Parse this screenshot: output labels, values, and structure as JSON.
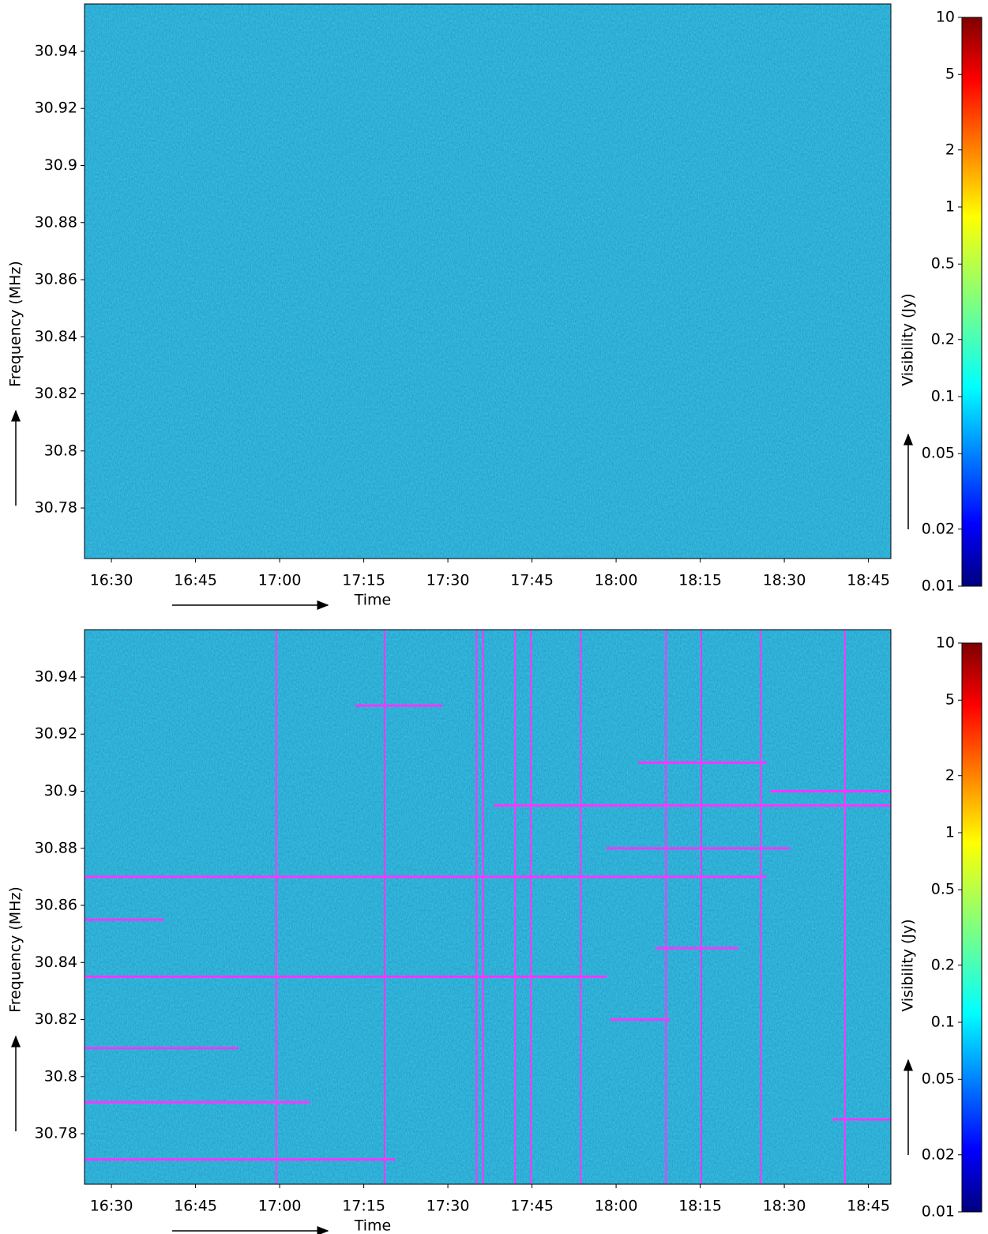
{
  "chart_data": [
    {
      "type": "heatmap",
      "x_label": "Time",
      "y_label": "Frequency (MHz)",
      "colorbar_label": "Visibility (Jy)",
      "xlim": [
        985.2,
        1129
      ],
      "xticks": [
        {
          "value": 990,
          "label": "16:30"
        },
        {
          "value": 1005,
          "label": "16:45"
        },
        {
          "value": 1020,
          "label": "17:00"
        },
        {
          "value": 1035,
          "label": "17:15"
        },
        {
          "value": 1050,
          "label": "17:30"
        },
        {
          "value": 1065,
          "label": "17:45"
        },
        {
          "value": 1080,
          "label": "18:00"
        },
        {
          "value": 1095,
          "label": "18:15"
        },
        {
          "value": 1110,
          "label": "18:30"
        },
        {
          "value": 1125,
          "label": "18:45"
        }
      ],
      "ylim": [
        30.7623,
        30.9566
      ],
      "yticks": [
        30.78,
        30.8,
        30.82,
        30.84,
        30.86,
        30.88,
        30.9,
        30.92,
        30.94
      ],
      "clim": [
        0.01,
        10
      ],
      "color_scale": "log",
      "colormap": [
        "#00007f",
        "#0000ff",
        "#00ffff",
        "#ffff00",
        "#ff0000",
        "#7f0000"
      ],
      "cticks": [
        0.01,
        0.02,
        0.05,
        0.1,
        0.2,
        0.5,
        1,
        2,
        5,
        10
      ],
      "background": "#1b8ec2"
    },
    {
      "type": "heatmap",
      "x_label": "Time",
      "y_label": "Frequency (MHz)",
      "colorbar_label": "Visibility (Jy)",
      "xlim": [
        985.2,
        1129
      ],
      "xticks": [
        {
          "value": 990,
          "label": "16:30"
        },
        {
          "value": 1005,
          "label": "16:45"
        },
        {
          "value": 1020,
          "label": "17:00"
        },
        {
          "value": 1035,
          "label": "17:15"
        },
        {
          "value": 1050,
          "label": "17:30"
        },
        {
          "value": 1065,
          "label": "17:45"
        },
        {
          "value": 1080,
          "label": "18:00"
        },
        {
          "value": 1095,
          "label": "18:15"
        },
        {
          "value": 1110,
          "label": "18:30"
        },
        {
          "value": 1125,
          "label": "18:45"
        }
      ],
      "ylim": [
        30.7623,
        30.9566
      ],
      "yticks": [
        30.78,
        30.8,
        30.82,
        30.84,
        30.86,
        30.88,
        30.9,
        30.92,
        30.94
      ],
      "clim": [
        0.01,
        10
      ],
      "color_scale": "log",
      "colormap": [
        "#00007f",
        "#0000ff",
        "#00ffff",
        "#ffff00",
        "#ff0000",
        "#7f0000"
      ],
      "cticks": [
        0.01,
        0.02,
        0.05,
        0.1,
        0.2,
        0.5,
        1,
        2,
        5,
        10
      ],
      "background": "#1b8ec2",
      "flagged": {
        "color": "#ff33ff",
        "horizontal": [
          [
            30.87,
            985.2,
            1106.8
          ],
          [
            30.835,
            985.2,
            1078.3
          ],
          [
            30.771,
            985.2,
            1040.6
          ],
          [
            30.791,
            985.2,
            1025.4
          ],
          [
            30.81,
            985.2,
            1012.7
          ],
          [
            30.855,
            985.2,
            999.4
          ],
          [
            30.895,
            1058.2,
            1129
          ],
          [
            30.88,
            1078.2,
            1111
          ],
          [
            30.93,
            1033.5,
            1049
          ],
          [
            30.845,
            1087,
            1101.8
          ],
          [
            30.91,
            1084,
            1106.8
          ],
          [
            30.785,
            1118.5,
            1129
          ],
          [
            30.9,
            1107.5,
            1129
          ],
          [
            30.82,
            1078.9,
            1089.6
          ]
        ],
        "vertical": [
          [
            1019.4,
            30.7623,
            30.9566
          ],
          [
            1038.7,
            30.7623,
            30.9566
          ],
          [
            1055.1,
            30.7623,
            30.9566
          ],
          [
            1056.3,
            30.7623,
            30.9566
          ],
          [
            1062,
            30.7623,
            30.9566
          ],
          [
            1064.8,
            30.7623,
            30.9566
          ],
          [
            1073.7,
            30.7623,
            30.9566
          ],
          [
            1088.9,
            30.7623,
            30.9566
          ],
          [
            1095.2,
            30.7623,
            30.9566
          ],
          [
            1105.8,
            30.7623,
            30.9566
          ],
          [
            1120.8,
            30.7623,
            30.9566
          ]
        ]
      }
    }
  ]
}
